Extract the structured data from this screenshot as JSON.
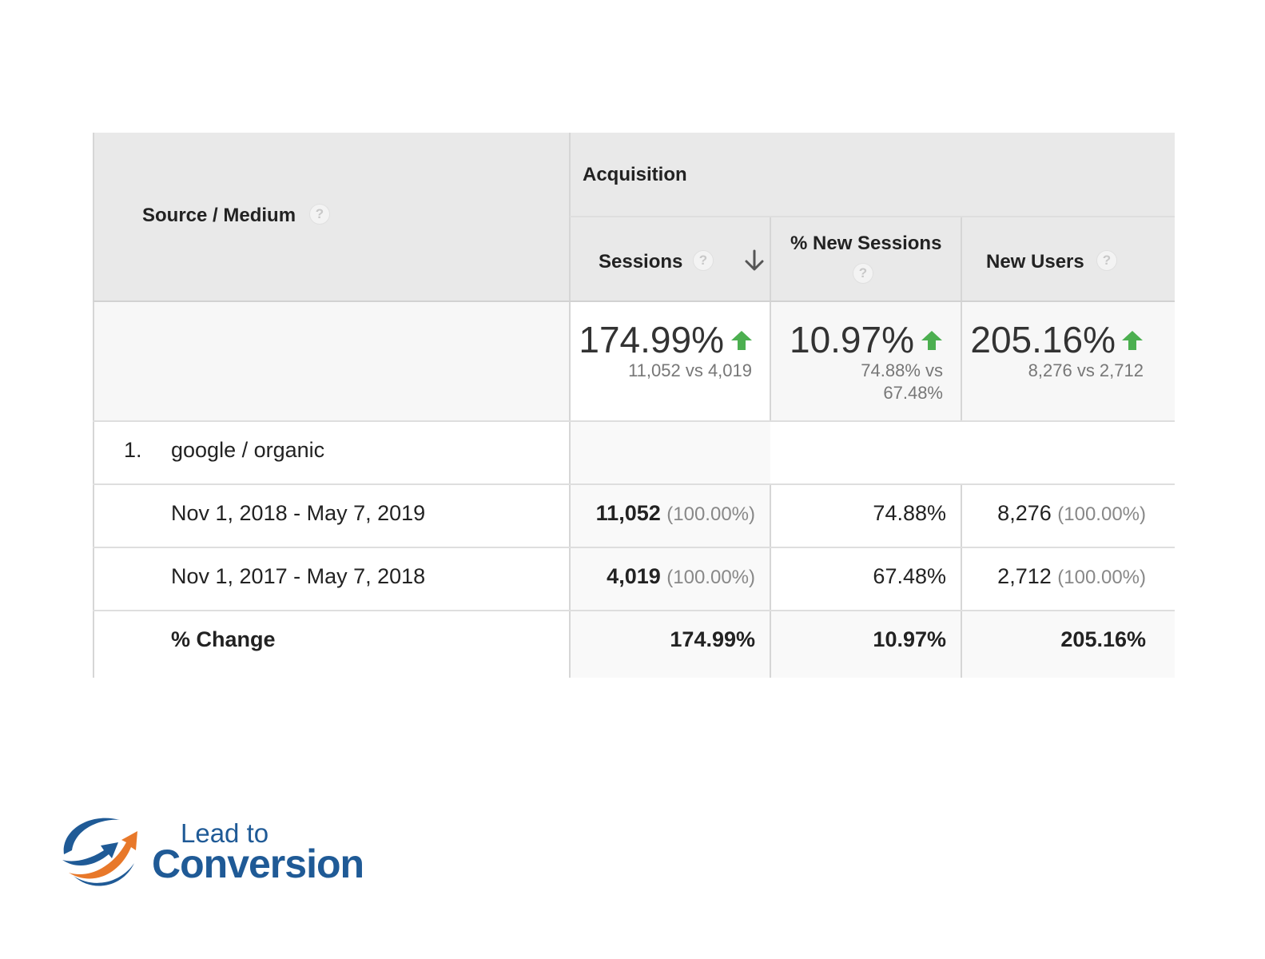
{
  "header": {
    "source_medium": "Source / Medium",
    "acquisition": "Acquisition",
    "sessions": "Sessions",
    "new_sessions": "% New Sessions",
    "new_users": "New Users",
    "help_glyph": "?"
  },
  "summary": {
    "sessions": {
      "big": "174.99%",
      "compare": "11,052 vs 4,019"
    },
    "new_sessions": {
      "big": "10.97%",
      "compare_1": "74.88% vs",
      "compare_2": "67.48%"
    },
    "new_users": {
      "big": "205.16%",
      "compare": "8,276 vs 2,712"
    },
    "trend_color": "#4caf50"
  },
  "rows": [
    {
      "index": "1.",
      "label": "google / organic"
    },
    {
      "label": "Nov 1, 2018 - May 7, 2019",
      "sessions": "11,052",
      "sessions_pct": "(100.00%)",
      "new_sessions": "74.88%",
      "new_users": "8,276",
      "new_users_pct": "(100.00%)"
    },
    {
      "label": "Nov 1, 2017 - May 7, 2018",
      "sessions": "4,019",
      "sessions_pct": "(100.00%)",
      "new_sessions": "67.48%",
      "new_users": "2,712",
      "new_users_pct": "(100.00%)"
    },
    {
      "label": "% Change",
      "sessions": "174.99%",
      "new_sessions": "10.97%",
      "new_users": "205.16%"
    }
  ],
  "logo": {
    "line1": "Lead to",
    "line2": "Conversion",
    "blue": "#1f5a96",
    "orange": "#e8782a"
  }
}
